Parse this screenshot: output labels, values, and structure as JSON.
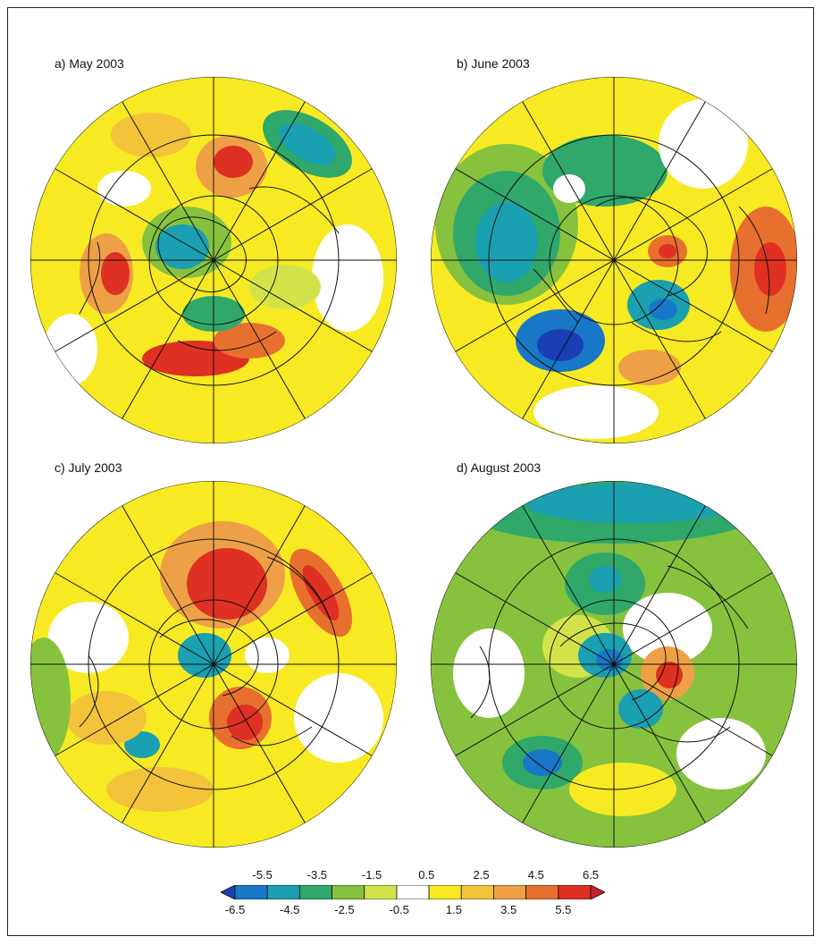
{
  "figure": {
    "panels": [
      {
        "title": "a) May 2003"
      },
      {
        "title": "b) June 2003"
      },
      {
        "title": "c) July 2003"
      },
      {
        "title": "d) August 2003"
      }
    ],
    "colorbar": {
      "top_labels": [
        "-5.5",
        "-3.5",
        "-1.5",
        "0.5",
        "2.5",
        "4.5",
        "6.5"
      ],
      "bottom_labels": [
        "-6.5",
        "-4.5",
        "-2.5",
        "-0.5",
        "1.5",
        "3.5",
        "5.5"
      ],
      "colors": [
        "#1a3fb5",
        "#1877c7",
        "#1aa0b0",
        "#2fa86a",
        "#86c23e",
        "#d2e34a",
        "#ffffff",
        "#f7ea22",
        "#f3c33a",
        "#eea046",
        "#e8702e",
        "#de3023",
        "#c9202c"
      ]
    }
  }
}
